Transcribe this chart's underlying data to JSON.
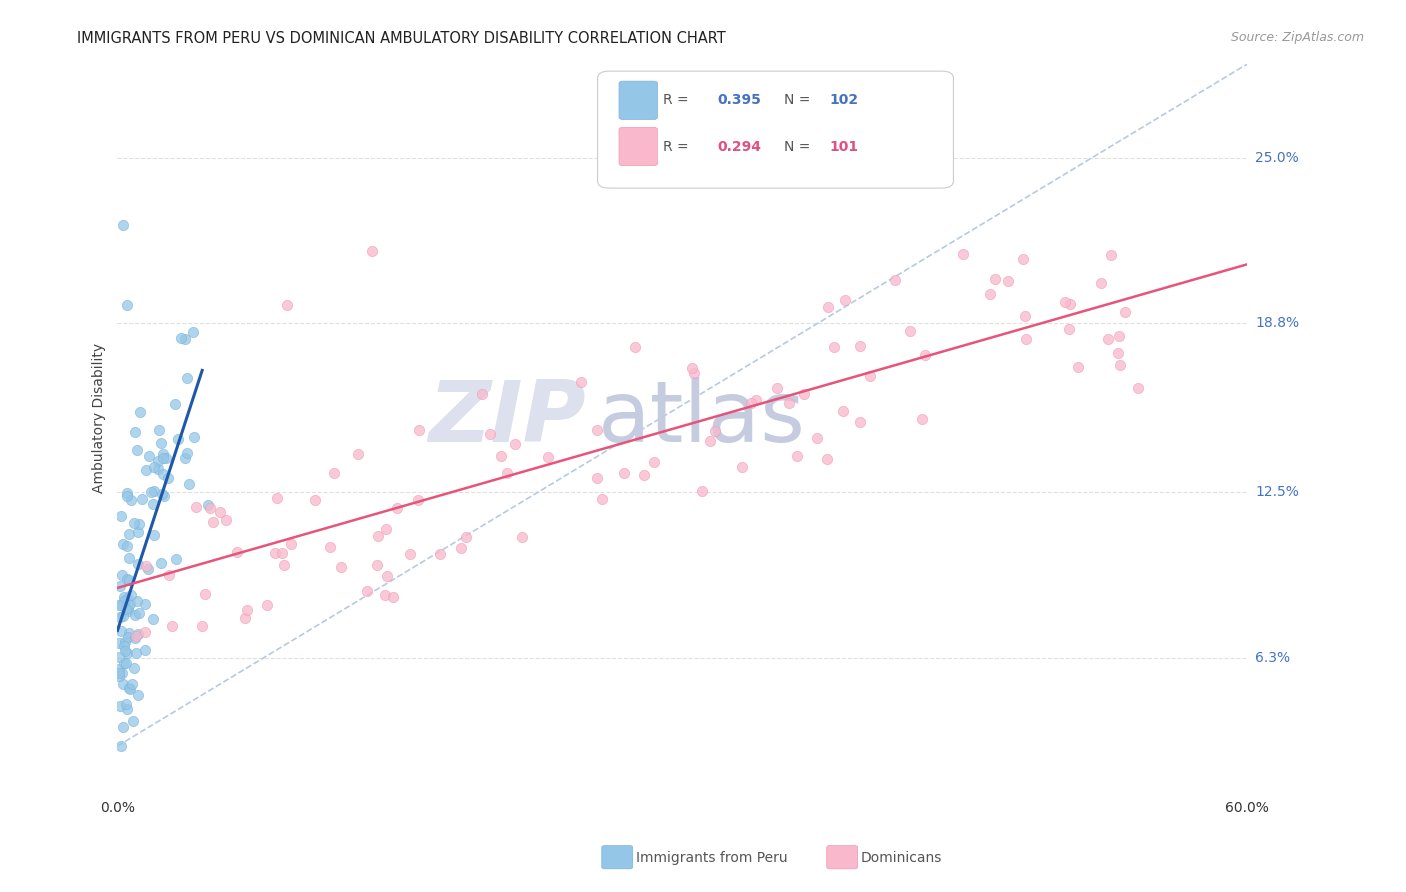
{
  "title": "IMMIGRANTS FROM PERU VS DOMINICAN AMBULATORY DISABILITY CORRELATION CHART",
  "source": "Source: ZipAtlas.com",
  "ylabel": "Ambulatory Disability",
  "ytick_labels": [
    "6.3%",
    "12.5%",
    "18.8%",
    "25.0%"
  ],
  "ytick_values": [
    0.063,
    0.125,
    0.188,
    0.25
  ],
  "xlim": [
    0.0,
    0.6
  ],
  "ylim": [
    0.02,
    0.285
  ],
  "legend_r1": "R = 0.395",
  "legend_n1": "N = 102",
  "legend_r2": "R = 0.294",
  "legend_n2": "N = 101",
  "peru_color": "#94c6e7",
  "peru_edge_color": "#7ab3d8",
  "dom_color": "#f9b8cb",
  "dom_edge_color": "#f09ab5",
  "peru_line_color": "#2058a8",
  "dom_line_color": "#e8537a",
  "diag_line_color": "#b0c4de",
  "watermark_zip_color": "#d8dce8",
  "watermark_atlas_color": "#c8d4e8",
  "background_color": "#ffffff",
  "grid_color": "#e0e0e0",
  "title_color": "#222222",
  "source_color": "#999999",
  "ylabel_color": "#444444",
  "ytick_color": "#4472C4",
  "xtick_color": "#333333",
  "legend_blue_color": "#4472C4",
  "legend_pink_color": "#e05080"
}
